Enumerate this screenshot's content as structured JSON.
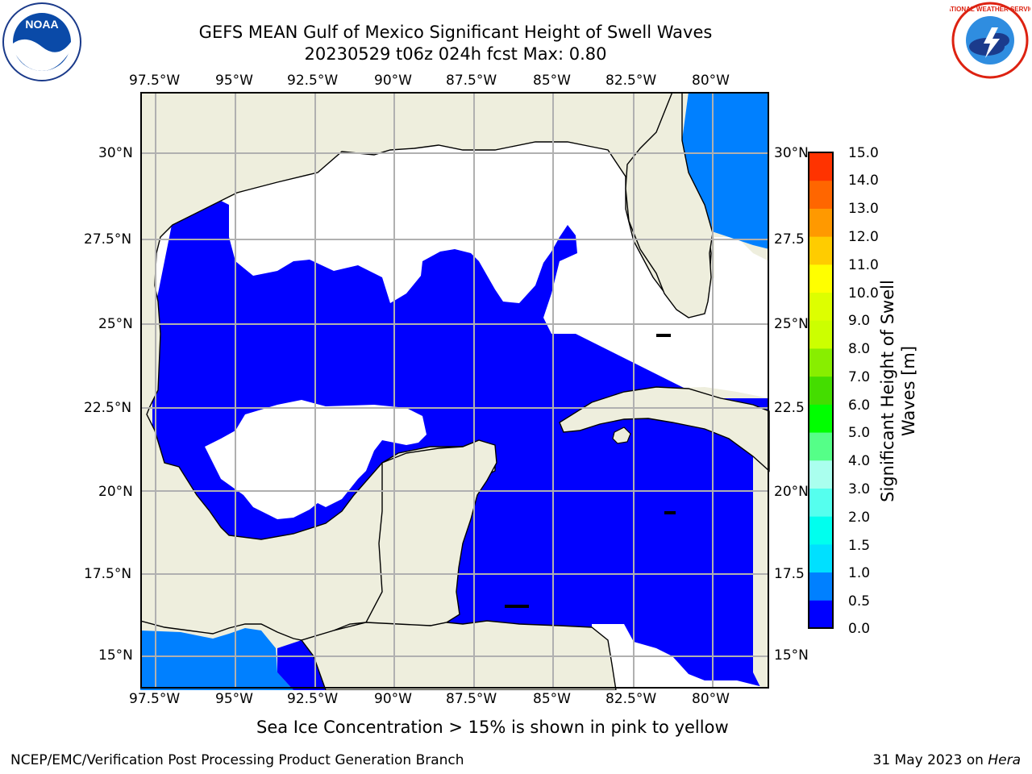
{
  "header": {
    "title_line1": "GEFS MEAN Gulf of Mexico Significant Height of Swell Waves",
    "title_line2": "20230529 t06z 024h fcst   Max: 0.80"
  },
  "logos": {
    "noaa_text": "NOAA",
    "noaa_ring": "NATIONAL OCEANIC AND ATMOSPHERIC ADMINISTRATION · U.S. DEPARTMENT OF COMMERCE",
    "nws_ring": "NATIONAL WEATHER SERVICE"
  },
  "map": {
    "lon_labels": [
      "97.5°W",
      "95°W",
      "92.5°W",
      "90°W",
      "87.5°W",
      "85°W",
      "82.5°W",
      "80°W"
    ],
    "lat_labels": [
      "30°N",
      "27.5°N",
      "25°N",
      "22.5°N",
      "20°N",
      "17.5°N",
      "15°N"
    ],
    "right_lat_labels": [
      "30°N",
      "27.5",
      "25°N",
      "22.5",
      "20°N",
      "17.5",
      "15°N"
    ],
    "colors": {
      "land": "#eeeedd",
      "sea_low": "#0000ff",
      "sea_mid": "#0080ff",
      "white": "#ffffff",
      "grid": "#b0b0b0"
    }
  },
  "colorbar": {
    "title_line1": "Significant Height of Swell",
    "title_line2": "Waves [m]",
    "labels": [
      "15.0",
      "14.0",
      "13.0",
      "12.0",
      "11.0",
      "10.0",
      "9.0",
      "8.0",
      "7.0",
      "6.0",
      "5.0",
      "4.0",
      "3.0",
      "2.0",
      "1.5",
      "1.0",
      "0.5",
      "0.0"
    ],
    "colors_bottom_to_top": [
      "#0000ff",
      "#0080ff",
      "#00e0ff",
      "#00ffee",
      "#55ffee",
      "#aaffee",
      "#55ff88",
      "#00ff00",
      "#44dd00",
      "#88ee00",
      "#ccff00",
      "#ddff00",
      "#ffff00",
      "#ffcc00",
      "#ff9900",
      "#ff6600",
      "#ff3300",
      "#ff0000"
    ]
  },
  "footer": {
    "note": "Sea Ice Concentration > 15% is shown in pink to yellow",
    "left": "NCEP/EMC/Verification Post Processing Product Generation Branch",
    "right_date": "31 May 2023 on ",
    "right_host": "Hera"
  }
}
